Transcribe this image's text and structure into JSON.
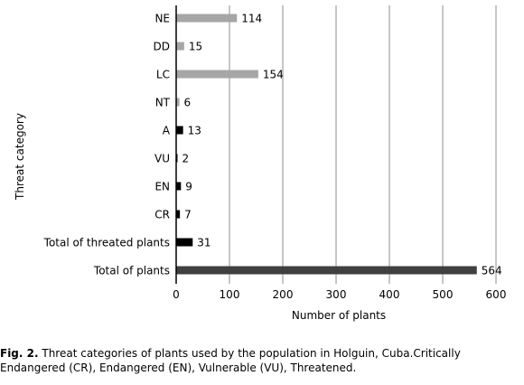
{
  "caption": {
    "label": "Fig. 2.",
    "text": " Threat categories of plants used by the population in Holguin, Cuba.Critically Endangered (CR), Endangered (EN), Vulnerable (VU), Threatened."
  },
  "chart_data": {
    "type": "bar",
    "orientation": "horizontal",
    "title": "",
    "xlabel": "Number of plants",
    "ylabel": "Threat category",
    "xlim": [
      0,
      600
    ],
    "xticks": [
      "0",
      "100",
      "200",
      "300",
      "400",
      "500",
      "600"
    ],
    "grid": "vertical",
    "legend": "none",
    "categories": [
      "NE",
      "DD",
      "LC",
      "NT",
      "A",
      "VU",
      "EN",
      "CR",
      "Total of threated plants",
      "Total of plants"
    ],
    "values": [
      114,
      15,
      154,
      6,
      13,
      2,
      9,
      7,
      31,
      564
    ],
    "value_labels": [
      "114",
      "15",
      "154",
      "6",
      "13",
      "2",
      "9",
      "7",
      "31",
      "564"
    ],
    "colors": [
      "#a6a6a6",
      "#a6a6a6",
      "#a6a6a6",
      "#a6a6a6",
      "#000000",
      "#000000",
      "#000000",
      "#000000",
      "#000000",
      "#404040"
    ]
  }
}
